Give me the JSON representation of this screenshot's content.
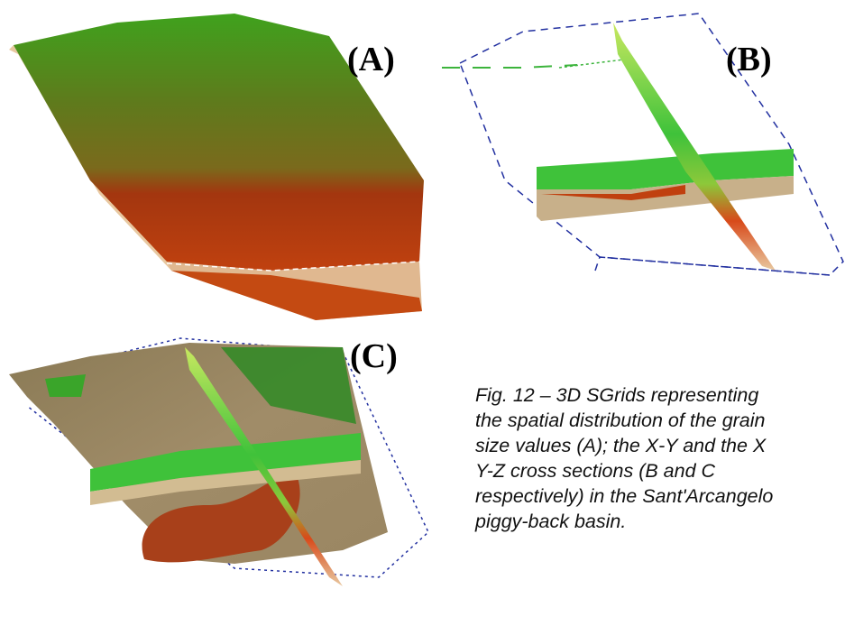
{
  "panels": [
    {
      "label": "(A)"
    },
    {
      "label": "(B)"
    },
    {
      "label": "(C)"
    }
  ],
  "caption": {
    "lines": [
      "Fig. 12 – 3D SGrids representing",
      "the spatial distribution of the grain",
      "size values (A); the X-Y and the X",
      "Y-Z cross sections (B and C",
      "respectively) in the Sant'Arcangelo",
      "piggy-back basin."
    ]
  }
}
